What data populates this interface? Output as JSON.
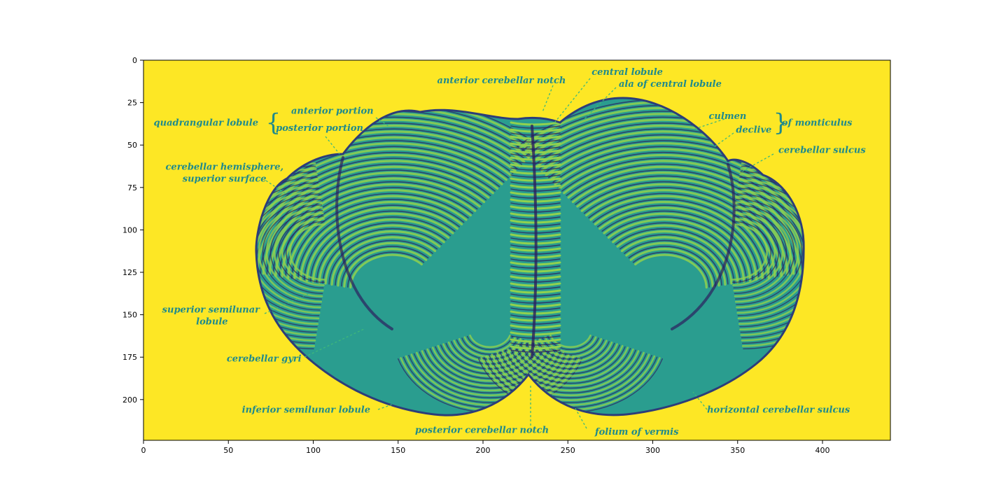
{
  "chart_data": {
    "type": "image",
    "xlim": [
      0,
      440
    ],
    "ylim": [
      224,
      0
    ],
    "x_ticks": [
      0,
      50,
      100,
      150,
      200,
      250,
      300,
      350,
      400
    ],
    "y_ticks": [
      0,
      25,
      50,
      75,
      100,
      125,
      150,
      175,
      200
    ],
    "colormap": "viridis",
    "colors": {
      "background": "#fde725",
      "label": "#1f8a8c",
      "dark": "#2c1f5e",
      "mid": "#2a9d8f",
      "light": "#8fd14f"
    }
  },
  "labels": [
    {
      "id": "anterior-cerebellar-notch",
      "text": "anterior cerebellar notch",
      "x": 173,
      "y": 12,
      "anchor": "start"
    },
    {
      "id": "central-lobule",
      "text": "central lobule",
      "x": 264,
      "y": 7,
      "anchor": "start"
    },
    {
      "id": "ala-of-central-lobule",
      "text": "ala of central lobule",
      "x": 280,
      "y": 14,
      "anchor": "start"
    },
    {
      "id": "anterior-portion",
      "text": "anterior portion",
      "x": 87,
      "y": 30,
      "anchor": "start"
    },
    {
      "id": "quadrangular-lobule",
      "text": "quadrangular lobule",
      "x": 6,
      "y": 37,
      "anchor": "start"
    },
    {
      "id": "posterior-portion",
      "text": "posterior portion",
      "x": 78,
      "y": 40,
      "anchor": "start"
    },
    {
      "id": "culmen",
      "text": "culmen",
      "x": 333,
      "y": 33,
      "anchor": "start"
    },
    {
      "id": "declive",
      "text": "declive",
      "x": 349,
      "y": 41,
      "anchor": "start"
    },
    {
      "id": "of-monticulus",
      "text": "of monticulus",
      "x": 376,
      "y": 37,
      "anchor": "start"
    },
    {
      "id": "cerebellar-sulcus",
      "text": "cerebellar sulcus",
      "x": 374,
      "y": 53,
      "anchor": "start"
    },
    {
      "id": "cerebellar-hemisphere",
      "text": "cerebellar hemisphere,",
      "x": 13,
      "y": 63,
      "anchor": "start"
    },
    {
      "id": "superior-surface",
      "text": "superior surface",
      "x": 23,
      "y": 70,
      "anchor": "start"
    },
    {
      "id": "superior-semilunar",
      "text": "superior semilunar",
      "x": 11,
      "y": 147,
      "anchor": "start"
    },
    {
      "id": "lobule",
      "text": "lobule",
      "x": 31,
      "y": 154,
      "anchor": "start"
    },
    {
      "id": "cerebellar-gyri",
      "text": "cerebellar gyri",
      "x": 49,
      "y": 176,
      "anchor": "start"
    },
    {
      "id": "inferior-semilunar-lobule",
      "text": "inferior semilunar lobule",
      "x": 58,
      "y": 206,
      "anchor": "start"
    },
    {
      "id": "horizontal-cerebellar-sulcus",
      "text": "horizontal cerebellar sulcus",
      "x": 332,
      "y": 206,
      "anchor": "start"
    },
    {
      "id": "posterior-cerebellar-notch",
      "text": "posterior cerebellar notch",
      "x": 160,
      "y": 218,
      "anchor": "start"
    },
    {
      "id": "folium-of-vermis",
      "text": "folium of vermis",
      "x": 266,
      "y": 219,
      "anchor": "start"
    }
  ]
}
